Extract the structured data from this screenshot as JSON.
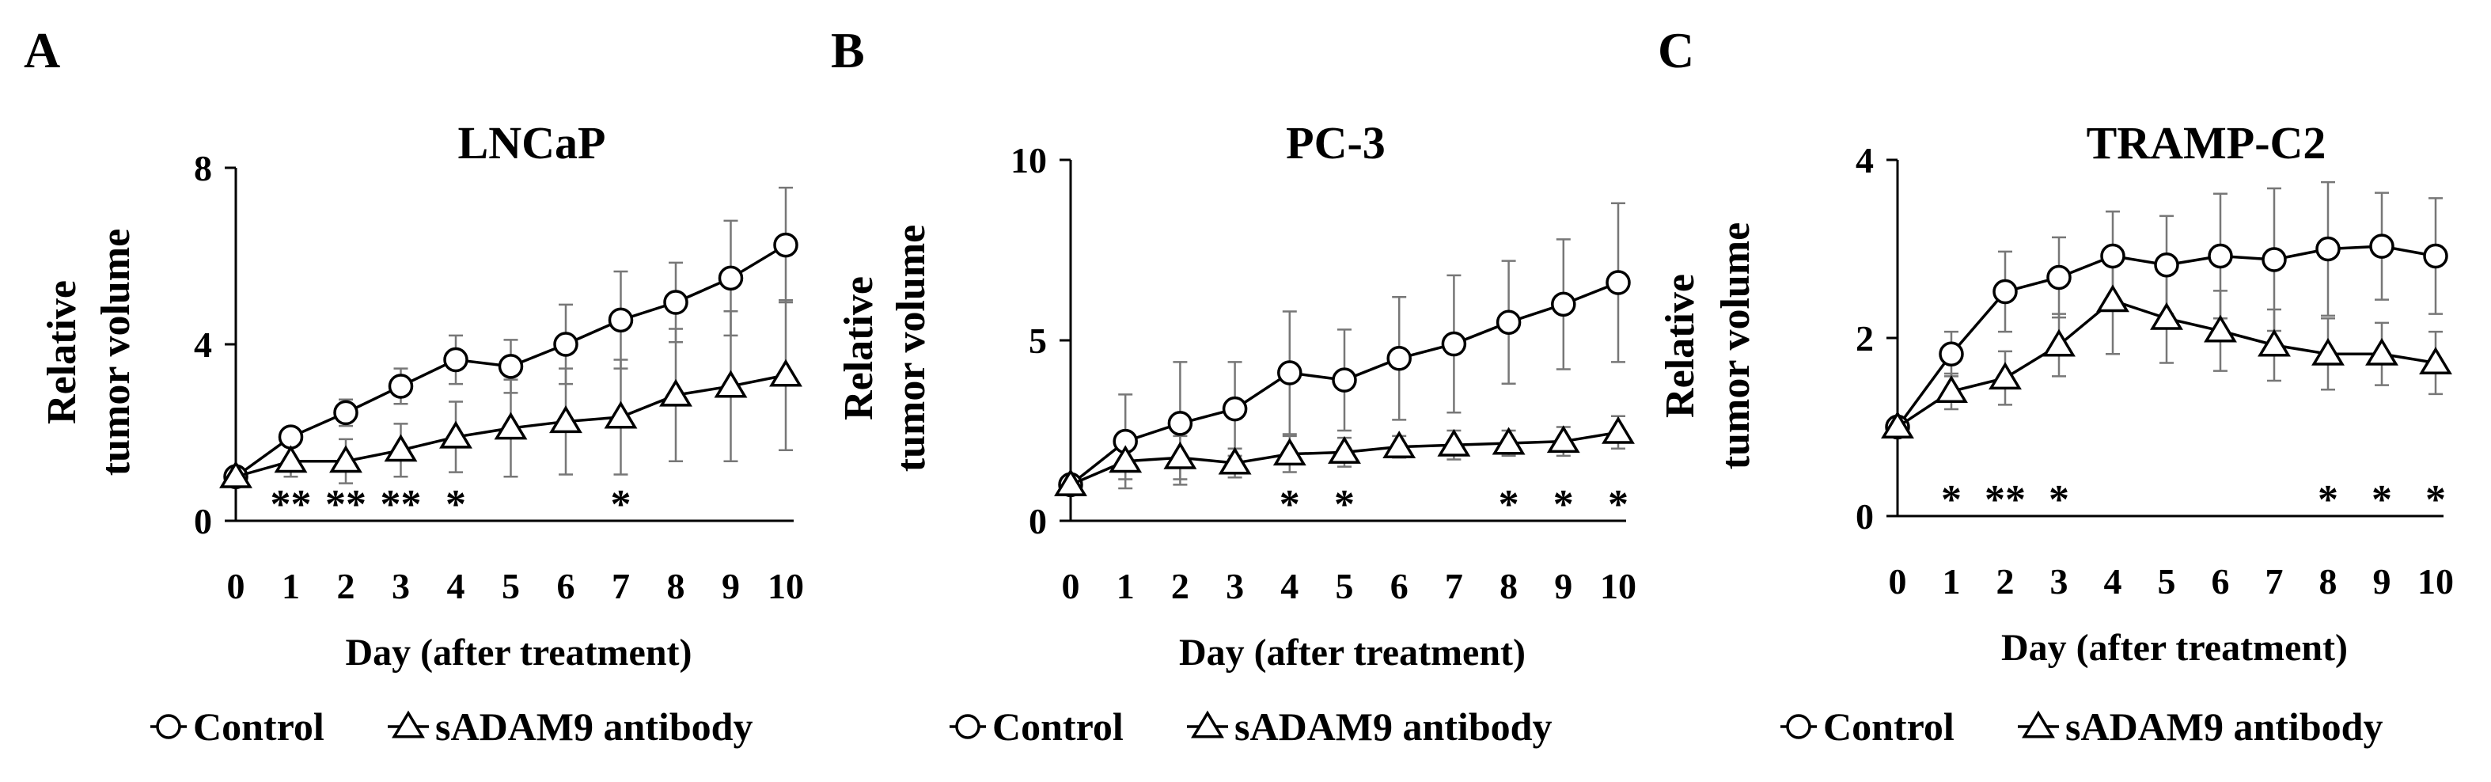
{
  "chart_data": [
    {
      "panel": "A",
      "type": "line",
      "title": "LNCaP",
      "ylabel_lines": [
        "Relative",
        "tumor volume"
      ],
      "xlabel": "Day (after treatment)",
      "x": [
        0,
        1,
        2,
        3,
        4,
        5,
        6,
        7,
        8,
        9,
        10
      ],
      "ylim": [
        0,
        8
      ],
      "yticks": [
        0,
        4,
        8
      ],
      "series": [
        {
          "name": "Control",
          "marker": "circle",
          "values": [
            1.0,
            1.9,
            2.45,
            3.05,
            3.65,
            3.5,
            4.0,
            4.55,
            4.95,
            5.5,
            6.25
          ],
          "error": [
            0.1,
            0.2,
            0.3,
            0.4,
            0.55,
            0.6,
            0.9,
            1.1,
            0.9,
            1.3,
            1.3
          ]
        },
        {
          "name": "sADAM9 antibody",
          "marker": "triangle",
          "values": [
            1.0,
            1.35,
            1.35,
            1.6,
            1.9,
            2.1,
            2.25,
            2.35,
            2.85,
            3.05,
            3.3
          ],
          "error": [
            0.1,
            0.35,
            0.5,
            0.6,
            0.8,
            1.1,
            1.2,
            1.3,
            1.5,
            1.7,
            1.7
          ]
        }
      ],
      "significance": [
        {
          "x": 1,
          "label": "**"
        },
        {
          "x": 2,
          "label": "**"
        },
        {
          "x": 3,
          "label": "**"
        },
        {
          "x": 4,
          "label": "*"
        },
        {
          "x": 7,
          "label": "*"
        }
      ]
    },
    {
      "panel": "B",
      "type": "line",
      "title": "PC-3",
      "ylabel_lines": [
        "Relative",
        "tumor volume"
      ],
      "xlabel": "Day (after treatment)",
      "x": [
        0,
        1,
        2,
        3,
        4,
        5,
        6,
        7,
        8,
        9,
        10
      ],
      "ylim": [
        0,
        10
      ],
      "yticks": [
        0,
        5,
        10
      ],
      "series": [
        {
          "name": "Control",
          "marker": "circle",
          "values": [
            1.0,
            2.2,
            2.7,
            3.1,
            4.1,
            3.9,
            4.5,
            4.9,
            5.5,
            6.0,
            6.6
          ],
          "error": [
            0.1,
            1.3,
            1.7,
            1.3,
            1.7,
            1.4,
            1.7,
            1.9,
            1.7,
            1.8,
            2.2
          ]
        },
        {
          "name": "sADAM9 antibody",
          "marker": "triangle",
          "values": [
            1.0,
            1.65,
            1.75,
            1.6,
            1.85,
            1.9,
            2.05,
            2.1,
            2.15,
            2.2,
            2.45
          ],
          "error": [
            0.1,
            0.5,
            0.6,
            0.4,
            0.5,
            0.4,
            0.3,
            0.4,
            0.35,
            0.4,
            0.45
          ]
        }
      ],
      "significance": [
        {
          "x": 4,
          "label": "*"
        },
        {
          "x": 5,
          "label": "*"
        },
        {
          "x": 8,
          "label": "*"
        },
        {
          "x": 9,
          "label": "*"
        },
        {
          "x": 10,
          "label": "*"
        }
      ]
    },
    {
      "panel": "C",
      "type": "line",
      "title": "TRAMP-C2",
      "ylabel_lines": [
        "Relative",
        "tumor volume"
      ],
      "xlabel": "Day (after treatment)",
      "x": [
        0,
        1,
        2,
        3,
        4,
        5,
        6,
        7,
        8,
        9,
        10
      ],
      "ylim": [
        0,
        4
      ],
      "yticks": [
        0,
        2,
        4
      ],
      "series": [
        {
          "name": "Control",
          "marker": "circle",
          "values": [
            1.0,
            1.82,
            2.52,
            2.68,
            2.92,
            2.82,
            2.92,
            2.88,
            3.0,
            3.03,
            2.92
          ],
          "error": [
            0.05,
            0.25,
            0.45,
            0.45,
            0.5,
            0.55,
            0.7,
            0.8,
            0.75,
            0.6,
            0.65
          ]
        },
        {
          "name": "sADAM9 antibody",
          "marker": "triangle",
          "values": [
            1.0,
            1.4,
            1.55,
            1.92,
            2.42,
            2.22,
            2.08,
            1.92,
            1.82,
            1.82,
            1.72
          ],
          "error": [
            0.05,
            0.2,
            0.3,
            0.35,
            0.6,
            0.5,
            0.45,
            0.4,
            0.4,
            0.35,
            0.35
          ]
        }
      ],
      "significance": [
        {
          "x": 1,
          "label": "*"
        },
        {
          "x": 2,
          "label": "**"
        },
        {
          "x": 3,
          "label": "*"
        },
        {
          "x": 8,
          "label": "*"
        },
        {
          "x": 9,
          "label": "*"
        },
        {
          "x": 10,
          "label": "*"
        }
      ]
    }
  ],
  "legend": {
    "control_label": "Control",
    "antibody_label": "sADAM9 antibody"
  },
  "colors": {
    "stroke": "#000000",
    "marker_fill": "#ffffff",
    "error_bar": "#777777"
  }
}
